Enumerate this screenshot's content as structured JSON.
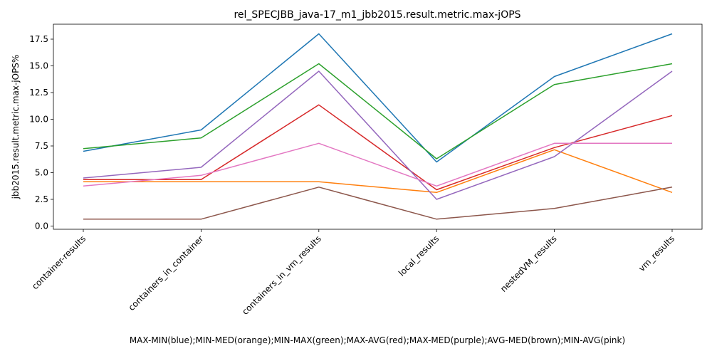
{
  "chart_data": {
    "type": "line",
    "title": "rel_SPECJBB_java-17_m1_jbb2015.result.metric.max-jOPS",
    "xlabel": "MAX-MIN(blue);MIN-MED(orange);MIN-MAX(green);MAX-AVG(red);MAX-MED(purple);AVG-MED(brown);MIN-AVG(pink)",
    "ylabel": "jbb2015.result.metric.max-jOPS%",
    "categories": [
      "container-results",
      "containers_in_container",
      "containers_in_vm_results",
      "local_results",
      "nestedVM_results",
      "vm_results"
    ],
    "ylim": [
      -0.3,
      18.9
    ],
    "yticks": [
      "0.0",
      "2.5",
      "5.0",
      "7.5",
      "10.0",
      "12.5",
      "15.0",
      "17.5"
    ],
    "grid": false,
    "series": [
      {
        "color": "#1f77b4",
        "values": [
          7.0,
          9.0,
          18.0,
          6.0,
          14.0,
          18.0
        ]
      },
      {
        "color": "#ff7f0e",
        "values": [
          4.15,
          4.15,
          4.15,
          3.15,
          7.15,
          3.15
        ]
      },
      {
        "color": "#2ca02c",
        "values": [
          7.25,
          8.25,
          15.2,
          6.3,
          13.25,
          15.2
        ]
      },
      {
        "color": "#d62728",
        "values": [
          4.35,
          4.35,
          11.35,
          3.4,
          7.35,
          10.35
        ]
      },
      {
        "color": "#9467bd",
        "values": [
          4.5,
          5.5,
          14.5,
          2.5,
          6.5,
          14.5
        ]
      },
      {
        "color": "#8c564b",
        "values": [
          0.65,
          0.65,
          3.65,
          0.65,
          1.65,
          3.65
        ]
      },
      {
        "color": "#e377c2",
        "values": [
          3.75,
          4.75,
          7.75,
          3.75,
          7.75,
          7.75
        ]
      }
    ]
  }
}
